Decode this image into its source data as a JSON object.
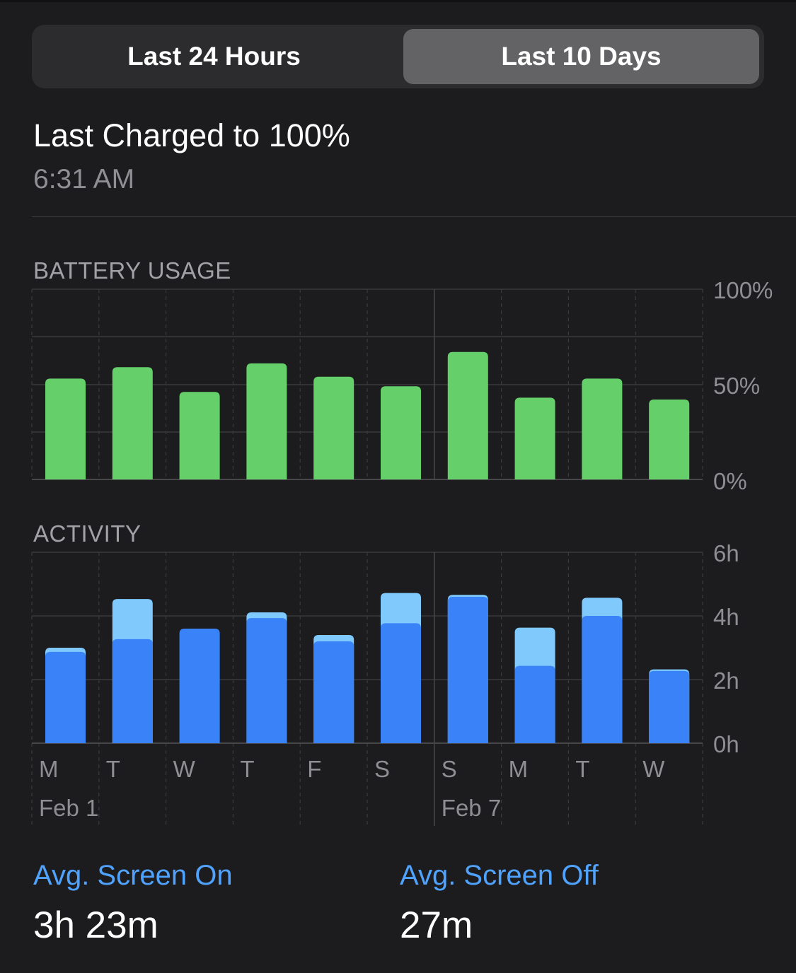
{
  "segmented_control": {
    "options": [
      "Last 24 Hours",
      "Last 10 Days"
    ],
    "selected": "Last 10 Days"
  },
  "last_charged": {
    "title": "Last Charged to 100%",
    "time": "6:31 AM"
  },
  "chart_data": [
    {
      "type": "bar",
      "title": "BATTERY USAGE",
      "categories": [
        "M",
        "T",
        "W",
        "T",
        "F",
        "S",
        "S",
        "M",
        "T",
        "W"
      ],
      "date_labels": [
        "Feb 1",
        "Feb 7"
      ],
      "values": [
        53,
        59,
        46,
        61,
        54,
        49,
        67,
        43,
        53,
        42
      ],
      "y_ticks": [
        "100%",
        "50%",
        "0%"
      ],
      "ylim": [
        0,
        100
      ],
      "grid": true,
      "colors": {
        "bar": "#65d06a"
      }
    },
    {
      "type": "bar",
      "title": "ACTIVITY",
      "stacked": true,
      "categories": [
        "M",
        "T",
        "W",
        "T",
        "F",
        "S",
        "S",
        "M",
        "T",
        "W"
      ],
      "date_labels": [
        "Feb 1",
        "Feb 7"
      ],
      "series": [
        {
          "values": [
            2.87,
            3.27,
            3.6,
            3.93,
            3.2,
            3.77,
            4.6,
            2.43,
            4.0,
            2.27
          ],
          "color": "#3a82f7"
        },
        {
          "values": [
            0.13,
            1.26,
            0.0,
            0.18,
            0.2,
            0.95,
            0.06,
            1.2,
            0.57,
            0.05
          ],
          "color": "#7fc9fd"
        }
      ],
      "y_ticks": [
        "6h",
        "4h",
        "2h",
        "0h"
      ],
      "ylim": [
        0,
        6
      ],
      "grid": true
    }
  ],
  "stats": {
    "screen_on": {
      "label": "Avg. Screen On",
      "value": "3h 23m"
    },
    "screen_off": {
      "label": "Avg. Screen Off",
      "value": "27m"
    }
  }
}
